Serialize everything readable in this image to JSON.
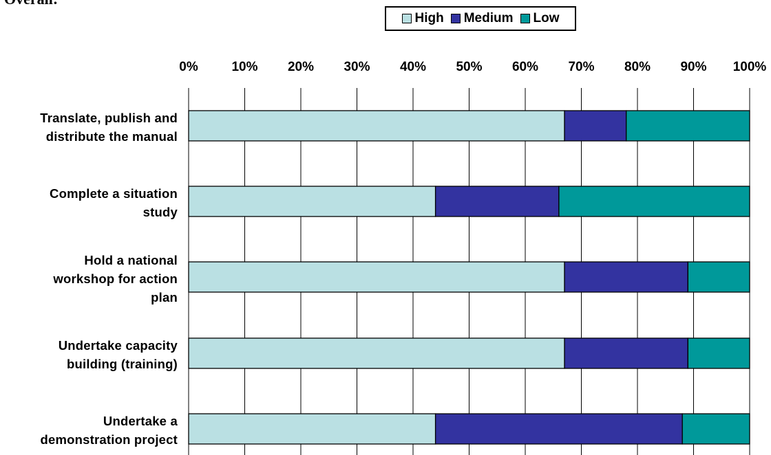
{
  "page": {
    "cropped_heading": "Overall:"
  },
  "chart_data": {
    "type": "bar",
    "orientation": "horizontal",
    "stacked": "percent",
    "title": "",
    "xlabel": "",
    "ylabel": "",
    "xlim": [
      0,
      100
    ],
    "x_ticks": [
      "0%",
      "10%",
      "20%",
      "30%",
      "40%",
      "50%",
      "60%",
      "70%",
      "80%",
      "90%",
      "100%"
    ],
    "grid": "vertical",
    "legend_position": "top-right",
    "categories": [
      "Translate, publish and\ndistribute the manual",
      "Complete a situation\nstudy",
      "Hold a national\nworkshop for action\nplan",
      "Undertake capacity\nbuilding (training)",
      "Undertake a\ndemonstration project"
    ],
    "series": [
      {
        "name": "High",
        "color": "#bae0e3",
        "values": [
          67,
          44,
          67,
          67,
          44
        ]
      },
      {
        "name": "Medium",
        "color": "#3333a0",
        "values": [
          11,
          22,
          22,
          22,
          44
        ]
      },
      {
        "name": "Low",
        "color": "#00999a",
        "values": [
          22,
          34,
          11,
          11,
          12
        ]
      }
    ]
  }
}
